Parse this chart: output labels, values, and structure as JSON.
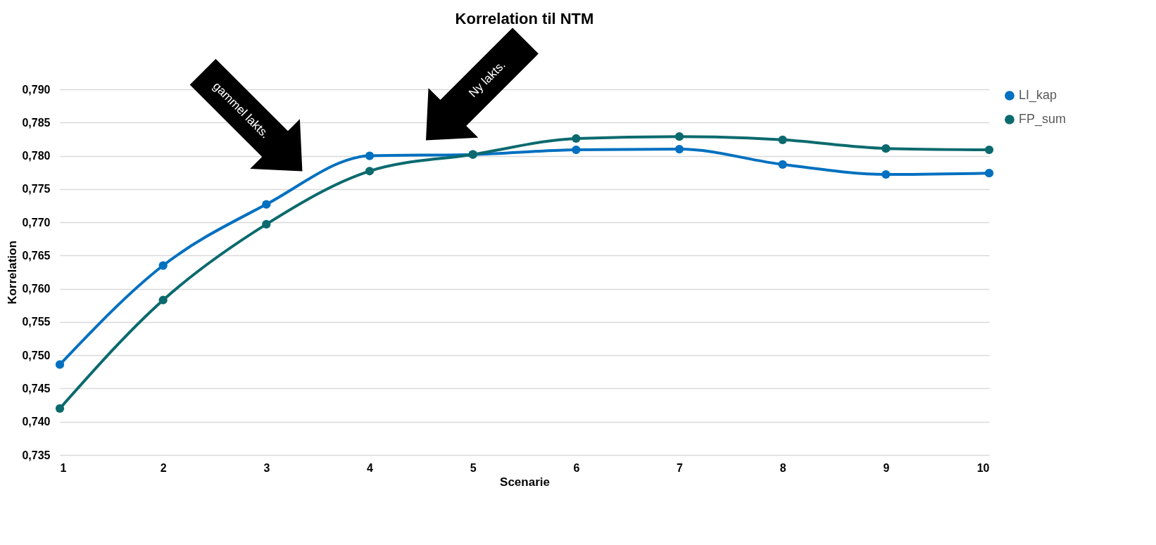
{
  "chart_data": {
    "type": "line",
    "title": "Korrelation til NTM",
    "xlabel": "Scenarie",
    "ylabel": "Korrelation",
    "x": [
      1,
      2,
      3,
      4,
      5,
      6,
      7,
      8,
      9,
      10
    ],
    "series": [
      {
        "name": "LI_kap",
        "color": "#0070c0",
        "values": [
          0.7486,
          0.7635,
          0.7727,
          0.78,
          0.7802,
          0.7809,
          0.781,
          0.7787,
          0.7772,
          0.7774
        ]
      },
      {
        "name": "FP_sum",
        "color": "#0b6a6e",
        "values": [
          0.742,
          0.7583,
          0.7697,
          0.7777,
          0.7802,
          0.7826,
          0.7829,
          0.7824,
          0.7811,
          0.7809
        ]
      }
    ],
    "xlim": [
      1,
      10
    ],
    "xticks": [
      1,
      2,
      3,
      4,
      5,
      6,
      7,
      8,
      9,
      10
    ],
    "ylim": [
      0.735,
      0.79
    ],
    "yticks": [
      {
        "value": 0.735,
        "label": "0,735"
      },
      {
        "value": 0.74,
        "label": "0,740"
      },
      {
        "value": 0.745,
        "label": "0,745"
      },
      {
        "value": 0.75,
        "label": "0,750"
      },
      {
        "value": 0.755,
        "label": "0,755"
      },
      {
        "value": 0.76,
        "label": "0,760"
      },
      {
        "value": 0.765,
        "label": "0,765"
      },
      {
        "value": 0.77,
        "label": "0,770"
      },
      {
        "value": 0.775,
        "label": "0,775"
      },
      {
        "value": 0.78,
        "label": "0,780"
      },
      {
        "value": 0.785,
        "label": "0,785"
      },
      {
        "value": 0.79,
        "label": "0,790"
      }
    ],
    "grid": "y",
    "legend": "right",
    "marker": "circle",
    "line_style": "solid",
    "annotations": [
      "gammel lakts.",
      "Ny lakts."
    ]
  }
}
